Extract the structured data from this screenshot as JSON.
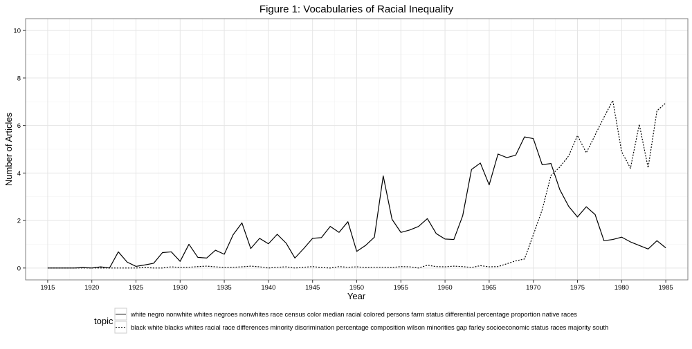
{
  "chart_data": {
    "type": "line",
    "title": "Figure 1: Vocabularies of Racial Inequality",
    "xlabel": "Year",
    "ylabel": "Number of Articles",
    "xlim": [
      1912.5,
      1987.5
    ],
    "ylim": [
      -0.5,
      10.5
    ],
    "x_ticks": [
      1915,
      1920,
      1925,
      1930,
      1935,
      1940,
      1945,
      1950,
      1955,
      1960,
      1965,
      1970,
      1975,
      1980,
      1985
    ],
    "y_ticks": [
      0,
      2,
      4,
      6,
      8,
      10
    ],
    "grid": true,
    "legend": {
      "title": "topic",
      "placement": "bottom"
    },
    "x": [
      1915,
      1916,
      1917,
      1918,
      1919,
      1920,
      1921,
      1922,
      1923,
      1924,
      1925,
      1926,
      1927,
      1928,
      1929,
      1930,
      1931,
      1932,
      1933,
      1934,
      1935,
      1936,
      1937,
      1938,
      1939,
      1940,
      1941,
      1942,
      1943,
      1944,
      1945,
      1946,
      1947,
      1948,
      1949,
      1950,
      1951,
      1952,
      1953,
      1954,
      1955,
      1956,
      1957,
      1958,
      1959,
      1960,
      1961,
      1962,
      1963,
      1964,
      1965,
      1966,
      1967,
      1968,
      1969,
      1970,
      1971,
      1972,
      1973,
      1974,
      1975,
      1976,
      1977,
      1978,
      1979,
      1980,
      1981,
      1982,
      1983,
      1984,
      1985
    ],
    "series": [
      {
        "name": "white negro nonwhite whites negroes nonwhites race census color median racial colored persons farm status differential percentage proportion native races",
        "style": "solid",
        "values": [
          0.0,
          0.0,
          0.0,
          0.0,
          0.02,
          0.0,
          0.05,
          0.0,
          0.68,
          0.25,
          0.07,
          0.13,
          0.2,
          0.65,
          0.68,
          0.28,
          1.0,
          0.45,
          0.42,
          0.75,
          0.58,
          1.4,
          1.9,
          0.82,
          1.25,
          1.02,
          1.42,
          1.05,
          0.42,
          0.82,
          1.25,
          1.28,
          1.75,
          1.5,
          1.95,
          0.7,
          0.95,
          1.3,
          3.88,
          2.05,
          1.5,
          1.6,
          1.75,
          2.08,
          1.45,
          1.22,
          1.2,
          2.2,
          4.15,
          4.42,
          3.5,
          4.8,
          4.65,
          4.75,
          5.52,
          5.45,
          4.35,
          4.4,
          3.3,
          2.6,
          2.15,
          2.58,
          2.25,
          1.15,
          1.2,
          1.3,
          1.1,
          0.95,
          0.8,
          1.15,
          0.85
        ]
      },
      {
        "name": "black white blacks whites racial race differences minority discrimination percentage composition wilson minorities gap farley socioeconomic status races majority south",
        "style": "dashed",
        "values": [
          0.0,
          0.0,
          0.0,
          0.0,
          0.0,
          0.0,
          0.0,
          0.0,
          0.0,
          0.0,
          0.0,
          0.02,
          0.0,
          0.0,
          0.05,
          0.02,
          0.03,
          0.06,
          0.08,
          0.05,
          0.02,
          0.03,
          0.05,
          0.08,
          0.05,
          0.0,
          0.03,
          0.05,
          0.0,
          0.03,
          0.06,
          0.02,
          0.0,
          0.06,
          0.03,
          0.05,
          0.02,
          0.03,
          0.03,
          0.02,
          0.06,
          0.05,
          0.0,
          0.12,
          0.06,
          0.05,
          0.08,
          0.06,
          0.02,
          0.1,
          0.05,
          0.06,
          0.18,
          0.3,
          0.38,
          1.4,
          2.45,
          3.9,
          4.25,
          4.72,
          5.58,
          4.85,
          5.6,
          6.35,
          7.05,
          4.9,
          4.2,
          6.05,
          4.22,
          6.62,
          6.95
        ]
      }
    ]
  }
}
